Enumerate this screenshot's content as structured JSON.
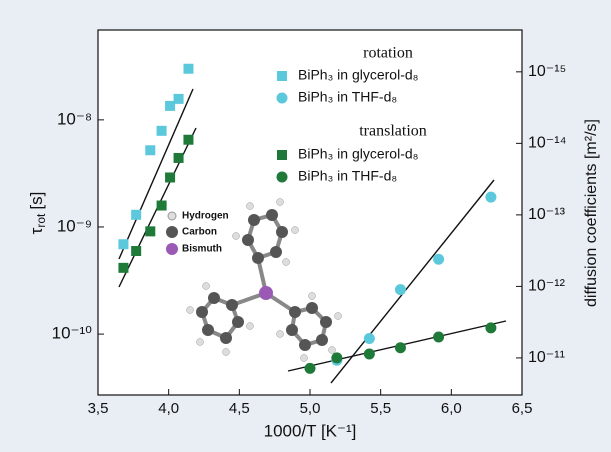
{
  "chart_data": {
    "type": "scatter",
    "x_label": "1000/T [K⁻¹]",
    "y_label": {
      "symbol": "τ",
      "sub": "rot",
      "unit": "[s]"
    },
    "y2_label": "diffusion coefficients [m²/s]",
    "legend_groups": [
      "rotation",
      "translation"
    ],
    "xlim": [
      3.5,
      6.5
    ],
    "xticks": [
      {
        "value": 3.5,
        "label": "3,5"
      },
      {
        "value": 4.0,
        "label": "4,0"
      },
      {
        "value": 4.5,
        "label": "4,5"
      },
      {
        "value": 5.0,
        "label": "5,0"
      },
      {
        "value": 5.5,
        "label": "5,5"
      },
      {
        "value": 6.0,
        "label": "6,0"
      },
      {
        "value": 6.5,
        "label": "6,5"
      }
    ],
    "log_y": true,
    "ylim": [
      2.7e-11,
      6.9e-08
    ],
    "yticks": [
      {
        "value": 1e-10,
        "label": "10⁻¹⁰"
      },
      {
        "value": 1e-09,
        "label": "10⁻⁹"
      },
      {
        "value": 1e-08,
        "label": "10⁻⁸"
      }
    ],
    "log_y2": true,
    "y2lim": [
      3.3e-11,
      2.6e-16
    ],
    "y2ticks": [
      {
        "value": 1e-15,
        "label": "10⁻¹⁵"
      },
      {
        "value": 1e-14,
        "label": "10⁻¹⁴"
      },
      {
        "value": 1e-13,
        "label": "10⁻¹³"
      },
      {
        "value": 1e-12,
        "label": "10⁻¹²"
      },
      {
        "value": 1e-11,
        "label": "10⁻¹¹"
      }
    ],
    "series": [
      {
        "name": "BiPh₃ in glycerol-d₈",
        "group": 0,
        "marker": "square",
        "color": "#5bc8dc",
        "axis": "y",
        "x": [
          3.68,
          3.77,
          3.87,
          3.95,
          4.01,
          4.07,
          4.14
        ],
        "values": [
          6.9e-10,
          1.3e-09,
          5.2e-09,
          7.9e-09,
          1.35e-08,
          1.57e-08,
          3e-08
        ]
      },
      {
        "name": "BiPh₃ in THF-d₈",
        "group": 0,
        "marker": "circle",
        "color": "#5bc8dc",
        "axis": "y",
        "x": [
          5.19,
          5.42,
          5.64,
          5.91,
          6.28
        ],
        "values": [
          5.7e-11,
          9.1e-11,
          2.6e-10,
          5e-10,
          1.9e-09
        ]
      },
      {
        "name": "BiPh₃ in glycerol-d₈",
        "group": 1,
        "marker": "square",
        "color": "#1f7a3a",
        "axis": "y2",
        "x": [
          3.68,
          3.77,
          3.87,
          3.95,
          4.01,
          4.07,
          4.14
        ],
        "values": [
          5.5e-13,
          3.2e-13,
          1.7e-13,
          7.4e-14,
          3e-14,
          1.6e-14,
          8.9e-15
        ]
      },
      {
        "name": "BiPh₃ in THF-d₈",
        "group": 1,
        "marker": "circle",
        "color": "#1f7a3a",
        "axis": "y2",
        "x": [
          5.0,
          5.19,
          5.42,
          5.64,
          5.91,
          6.28
        ],
        "values": [
          1.4e-11,
          1e-11,
          8.8e-12,
          7.2e-12,
          5.1e-12,
          3.8e-12
        ]
      }
    ],
    "molecule_labels": [
      "Hydrogen",
      "Carbon",
      "Bismuth"
    ]
  }
}
